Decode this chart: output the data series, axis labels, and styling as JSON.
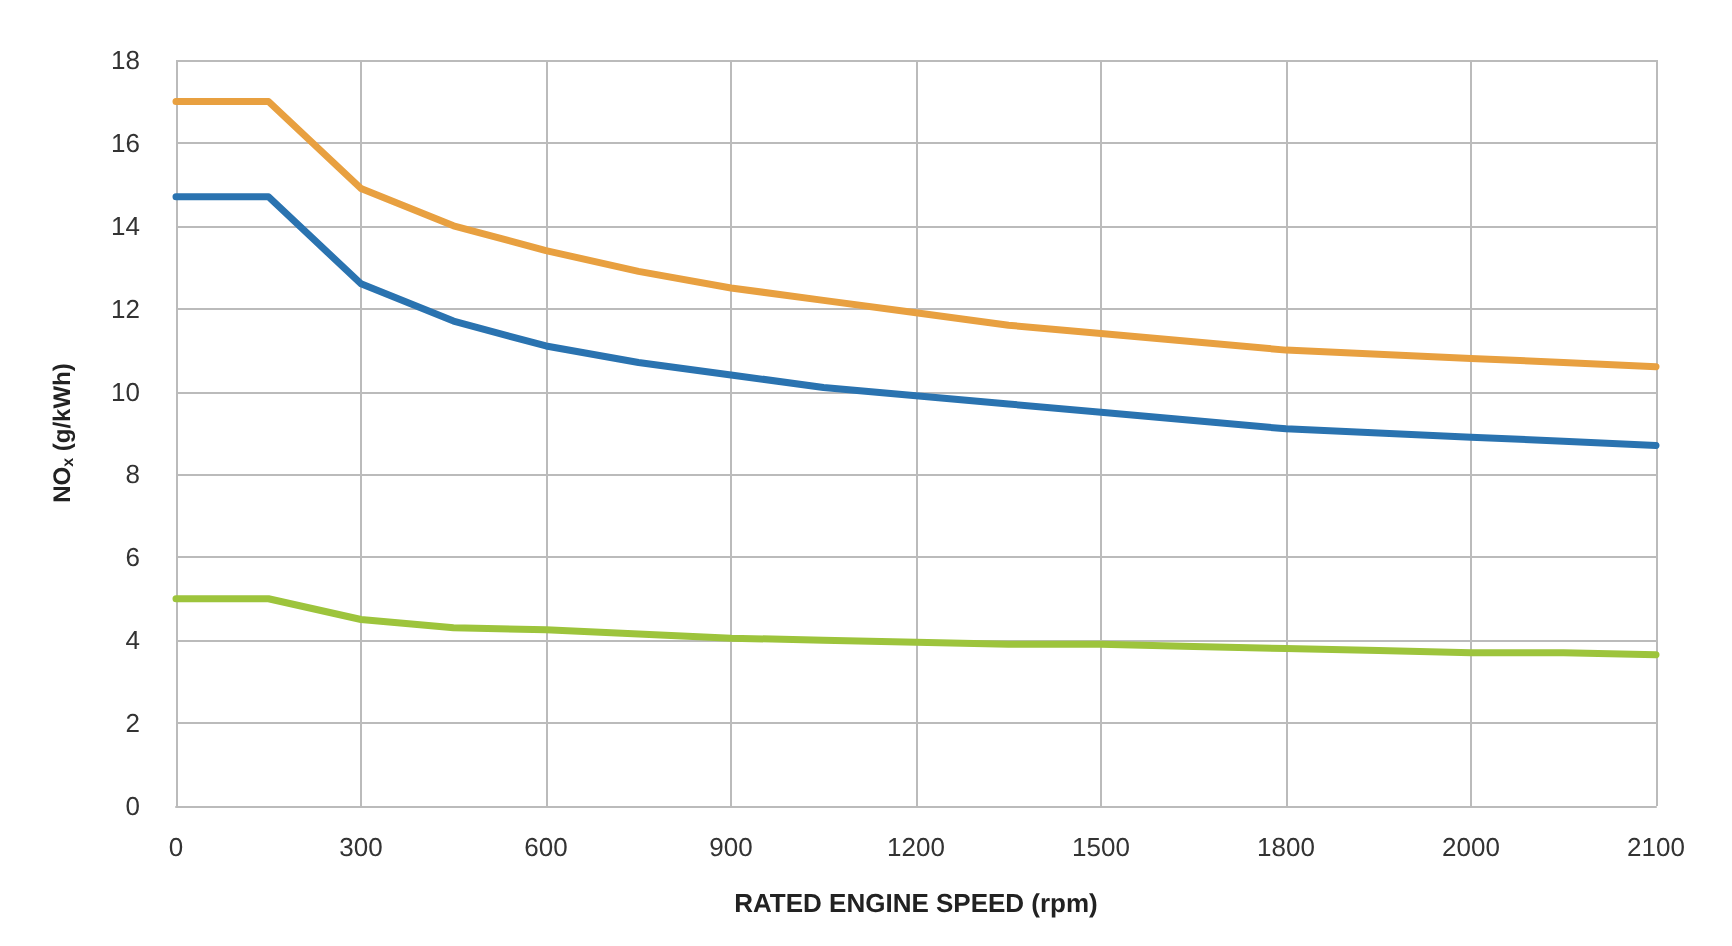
{
  "chart_data": {
    "type": "line",
    "xlabel": "RATED ENGINE SPEED (rpm)",
    "ylabel": "NO$_{x}$ (g/kWh)",
    "categories": [
      "0",
      null,
      "300",
      null,
      "600",
      null,
      "900",
      null,
      "1200",
      null,
      "1500",
      null,
      "1800",
      null,
      "2000",
      null,
      "2100"
    ],
    "series": [
      {
        "color": "#e8a040",
        "values": [
          17,
          17,
          14.9,
          14.0,
          13.4,
          12.9,
          12.5,
          12.2,
          11.9,
          11.6,
          11.4,
          11.2,
          11.0,
          10.9,
          10.8,
          10.7,
          10.6
        ]
      },
      {
        "color": "#2a73b0",
        "values": [
          14.7,
          14.7,
          12.6,
          11.7,
          11.1,
          10.7,
          10.4,
          10.1,
          9.9,
          9.7,
          9.5,
          9.3,
          9.1,
          9.0,
          8.9,
          8.8,
          8.7
        ]
      },
      {
        "color": "#9dc43c",
        "values": [
          5.0,
          5.0,
          4.5,
          4.3,
          4.25,
          4.15,
          4.05,
          4.0,
          3.95,
          3.9,
          3.9,
          3.85,
          3.8,
          3.75,
          3.7,
          3.7,
          3.65
        ]
      }
    ],
    "ylim": [
      0,
      18
    ],
    "yticks": [
      0,
      2,
      4,
      6,
      8,
      10,
      12,
      14,
      16,
      18
    ],
    "grid": true,
    "marker": "none",
    "line_style": "solid"
  }
}
